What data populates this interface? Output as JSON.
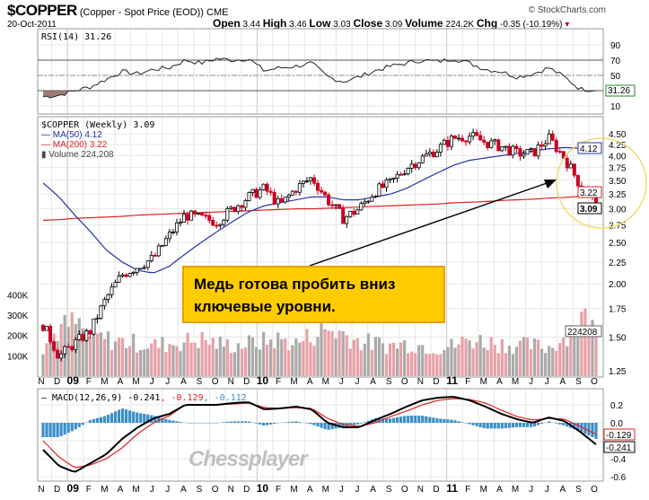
{
  "header": {
    "symbol": "$COPPER",
    "description": "(Copper - Spot Price (EOD))",
    "exchange": "CME",
    "date": "20-Oct-2011",
    "source": "© StockCharts.com",
    "open_label": "Open",
    "open": "3.44",
    "high_label": "High",
    "high": "3.46",
    "low_label": "Low",
    "low": "3.03",
    "close_label": "Close",
    "close": "3.09",
    "volume_label": "Volume",
    "volume": "224.2K",
    "chg_label": "Chg",
    "chg": "-0.35 (-10.19%)"
  },
  "rsi": {
    "legend": "RSI(14) 31.26",
    "value_box": "31.26",
    "ticks": [
      "90",
      "70",
      "50",
      "10"
    ]
  },
  "price": {
    "legend": "$COPPER (Weekly) 3.09",
    "ma50_legend": "MA(50) 4.12",
    "ma200_legend": "MA(200) 3.22",
    "volume_legend": "Volume 224,208",
    "ma50_box": "4.12",
    "ma200_box": "3.22",
    "close_box": "3.09",
    "volume_box": "224208",
    "ticks": [
      "4.50",
      "4.25",
      "4.00",
      "3.75",
      "3.50",
      "3.25",
      "3.00",
      "2.75",
      "2.50",
      "2.25",
      "2.00",
      "1.75",
      "1.50",
      "1.25"
    ],
    "volume_ticks": [
      "400K",
      "300K",
      "200K",
      "100K"
    ]
  },
  "macd": {
    "legend_name": "MACD(12,26,9)",
    "legend_macd": "-0.241",
    "legend_signal": "-0.129",
    "legend_hist": "-0.112",
    "ticks": [
      "0.2",
      "0.0",
      "-0.4",
      "-0.6"
    ],
    "signal_box": "-0.129",
    "macd_box": "-0.241"
  },
  "months": [
    "N",
    "D",
    "09",
    "F",
    "M",
    "A",
    "M",
    "J",
    "J",
    "A",
    "S",
    "O",
    "N",
    "D",
    "10",
    "F",
    "M",
    "A",
    "M",
    "J",
    "J",
    "A",
    "S",
    "O",
    "N",
    "D",
    "11",
    "F",
    "M",
    "A",
    "M",
    "J",
    "J",
    "A",
    "S",
    "O"
  ],
  "annotation": "Медь готова пробить вниз ключевые уровни.",
  "watermark": "Chessplayer",
  "colors": {
    "up": "#000000",
    "down": "#cc0022",
    "ma50": "#2233aa",
    "ma200": "#dd2222",
    "volume_up": "#aaaaaa",
    "volume_down": "#e8a0a8",
    "hist": "#3a8fc8",
    "macd": "#000000",
    "signal": "#e02020",
    "highlight": "#f2d85a",
    "callout": "#ffcc00"
  },
  "chart_data": {
    "type": "candlestick",
    "title": "$COPPER (Weekly)",
    "x_unit": "months since Nov 2008",
    "price_anchors": [
      1.6,
      1.35,
      1.45,
      1.55,
      1.85,
      2.1,
      2.2,
      2.3,
      2.6,
      2.9,
      2.85,
      2.8,
      3.0,
      3.2,
      3.35,
      3.05,
      3.35,
      3.55,
      3.15,
      2.85,
      3.0,
      3.3,
      3.45,
      3.75,
      3.95,
      4.15,
      4.4,
      4.45,
      4.3,
      4.2,
      4.05,
      4.05,
      4.4,
      3.95,
      3.4,
      3.09
    ],
    "ma50_anchors": [
      3.45,
      3.2,
      2.9,
      2.65,
      2.4,
      2.25,
      2.15,
      2.12,
      2.2,
      2.35,
      2.5,
      2.65,
      2.8,
      2.95,
      3.05,
      3.1,
      3.15,
      3.2,
      3.2,
      3.15,
      3.15,
      3.2,
      3.25,
      3.35,
      3.5,
      3.65,
      3.8,
      3.9,
      3.95,
      4.0,
      4.05,
      4.1,
      4.15,
      4.18,
      4.16,
      4.12
    ],
    "ma200_anchors": [
      2.82,
      2.83,
      2.85,
      2.86,
      2.87,
      2.88,
      2.9,
      2.91,
      2.92,
      2.93,
      2.94,
      2.95,
      2.96,
      2.97,
      2.98,
      2.99,
      3.0,
      3.0,
      3.01,
      3.02,
      3.03,
      3.04,
      3.05,
      3.06,
      3.07,
      3.08,
      3.1,
      3.11,
      3.12,
      3.14,
      3.15,
      3.16,
      3.18,
      3.19,
      3.21,
      3.22
    ],
    "volume_k_anchors": [
      150,
      230,
      260,
      200,
      180,
      170,
      160,
      150,
      160,
      170,
      180,
      160,
      150,
      160,
      170,
      180,
      160,
      200,
      230,
      210,
      170,
      160,
      150,
      160,
      150,
      140,
      150,
      180,
      170,
      160,
      150,
      150,
      140,
      190,
      300,
      224
    ],
    "rsi_anchors": [
      22,
      24,
      30,
      35,
      45,
      55,
      52,
      58,
      60,
      70,
      66,
      72,
      70,
      72,
      56,
      60,
      62,
      66,
      48,
      42,
      48,
      56,
      62,
      66,
      70,
      68,
      72,
      66,
      58,
      55,
      48,
      52,
      60,
      48,
      32,
      31.26
    ],
    "macd_anchors": [
      -0.3,
      -0.48,
      -0.55,
      -0.45,
      -0.35,
      -0.18,
      -0.05,
      0.05,
      0.1,
      0.2,
      0.2,
      0.2,
      0.22,
      0.23,
      0.15,
      0.16,
      0.18,
      0.15,
      0.0,
      -0.05,
      -0.05,
      0.03,
      0.1,
      0.18,
      0.25,
      0.28,
      0.29,
      0.25,
      0.18,
      0.1,
      0.04,
      0.0,
      0.06,
      0.02,
      -0.1,
      -0.241
    ],
    "signal_anchors": [
      -0.2,
      -0.38,
      -0.5,
      -0.47,
      -0.4,
      -0.28,
      -0.12,
      0.0,
      0.08,
      0.2,
      0.2,
      0.2,
      0.21,
      0.22,
      0.17,
      0.16,
      0.17,
      0.16,
      0.05,
      -0.02,
      -0.04,
      0.0,
      0.07,
      0.13,
      0.2,
      0.25,
      0.27,
      0.26,
      0.22,
      0.14,
      0.07,
      0.03,
      0.05,
      0.04,
      -0.04,
      -0.129
    ],
    "price_range": [
      1.25,
      4.5
    ],
    "rsi_range": [
      10,
      90
    ],
    "macd_range": [
      -0.6,
      0.3
    ]
  }
}
